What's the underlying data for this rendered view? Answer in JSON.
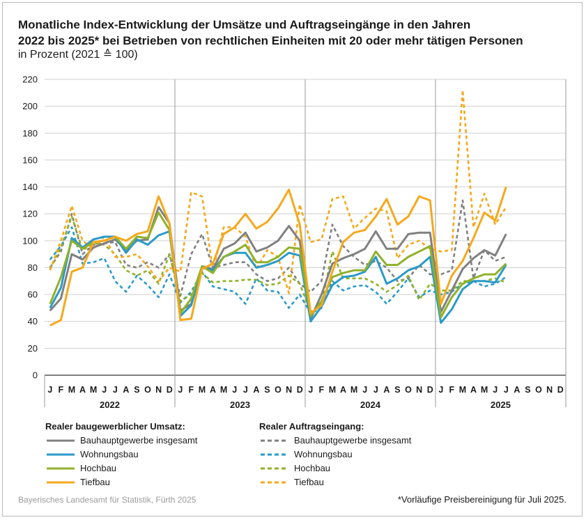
{
  "title_line1": "Monatliche Index-Entwicklung der Umsätze und Auftragseingänge in den Jahren",
  "title_line2": "2022 bis 2025* bei Betrieben von rechtlichen Einheiten mit 20 oder mehr tätigen Personen",
  "subtitle": "in Prozent (2021 ≙ 100)",
  "legend": {
    "group1_title": "Realer baugewerblicher Umsatz:",
    "group2_title": "Realer Auftragseingang:"
  },
  "source": "Bayerisches Landesamt für Statistik, Fürth 2025",
  "footnote": "*Vorläufige Preisbereinigung für Juli 2025.",
  "colors": {
    "grey": "#808080",
    "blue": "#2a9ac9",
    "green": "#8fb12a",
    "orange": "#f5a81c"
  },
  "chart_data": {
    "type": "line",
    "ylim": [
      0,
      220
    ],
    "yticks": [
      0,
      20,
      40,
      60,
      80,
      100,
      120,
      140,
      160,
      180,
      200,
      220
    ],
    "grid": true,
    "month_labels": [
      "J",
      "F",
      "M",
      "A",
      "M",
      "J",
      "J",
      "A",
      "S",
      "O",
      "N",
      "D"
    ],
    "years": [
      "2022",
      "2023",
      "2024",
      "2025"
    ],
    "series": [
      {
        "name": "Bauhauptgewerbe insgesamt",
        "group": "Realer baugewerblicher Umsatz",
        "color": "#808080",
        "dashed": false,
        "values": [
          48,
          57,
          90,
          86,
          95,
          98,
          101,
          93,
          100,
          101,
          125,
          113,
          48,
          53,
          81,
          79,
          94,
          98,
          106,
          92,
          95,
          100,
          111,
          100,
          42,
          60,
          83,
          87,
          90,
          94,
          107,
          94,
          94,
          105,
          106,
          106,
          47,
          63,
          79,
          87,
          93,
          89,
          105
        ]
      },
      {
        "name": "Wohnungsbau",
        "group": "Realer baugewerblicher Umsatz",
        "color": "#2a9ac9",
        "dashed": false,
        "values": [
          50,
          65,
          102,
          95,
          101,
          103,
          103,
          91,
          101,
          97,
          104,
          107,
          44,
          52,
          80,
          78,
          88,
          91,
          91,
          80,
          82,
          85,
          91,
          89,
          40,
          51,
          67,
          73,
          74,
          77,
          88,
          68,
          72,
          78,
          81,
          88,
          39,
          49,
          64,
          70,
          70,
          69,
          82
        ]
      },
      {
        "name": "Hochbau",
        "group": "Realer baugewerblicher Umsatz",
        "color": "#8fb12a",
        "dashed": false,
        "values": [
          53,
          73,
          100,
          94,
          99,
          100,
          103,
          94,
          103,
          102,
          121,
          108,
          46,
          57,
          81,
          76,
          88,
          92,
          97,
          84,
          84,
          88,
          95,
          94,
          44,
          55,
          73,
          76,
          78,
          78,
          92,
          82,
          82,
          88,
          92,
          96,
          43,
          58,
          68,
          72,
          75,
          75,
          83
        ]
      },
      {
        "name": "Tiefbau",
        "group": "Realer baugewerblicher Umsatz",
        "color": "#f5a81c",
        "dashed": false,
        "values": [
          37,
          41,
          77,
          80,
          99,
          100,
          103,
          100,
          105,
          107,
          133,
          113,
          41,
          42,
          79,
          83,
          105,
          110,
          120,
          109,
          114,
          124,
          138,
          112,
          46,
          52,
          77,
          99,
          106,
          108,
          118,
          131,
          112,
          118,
          133,
          130,
          53,
          74,
          85,
          102,
          121,
          115,
          140
        ]
      },
      {
        "name": "Bauhauptgewerbe insgesamt",
        "group": "Realer Auftragseingang",
        "color": "#808080",
        "dashed": true,
        "values": [
          80,
          92,
          120,
          90,
          97,
          98,
          99,
          82,
          80,
          84,
          80,
          90,
          59,
          90,
          105,
          80,
          82,
          84,
          84,
          75,
          70,
          72,
          80,
          68,
          62,
          70,
          112,
          96,
          88,
          82,
          85,
          80,
          70,
          72,
          82,
          75,
          75,
          78,
          130,
          72,
          93,
          85,
          88
        ]
      },
      {
        "name": "Wohnungsbau",
        "group": "Realer Auftragseingang",
        "color": "#2a9ac9",
        "dashed": true,
        "values": [
          86,
          96,
          110,
          83,
          84,
          87,
          70,
          62,
          74,
          67,
          58,
          75,
          54,
          62,
          77,
          66,
          64,
          62,
          53,
          72,
          63,
          62,
          50,
          60,
          46,
          50,
          70,
          63,
          66,
          67,
          62,
          53,
          62,
          72,
          58,
          63,
          60,
          62,
          68,
          70,
          66,
          68,
          73
        ]
      },
      {
        "name": "Hochbau",
        "group": "Realer Auftragseingang",
        "color": "#8fb12a",
        "dashed": true,
        "values": [
          79,
          95,
          118,
          93,
          98,
          97,
          90,
          78,
          74,
          78,
          68,
          90,
          55,
          60,
          76,
          69,
          70,
          70,
          71,
          71,
          67,
          68,
          74,
          68,
          47,
          53,
          92,
          72,
          72,
          72,
          68,
          62,
          67,
          74,
          56,
          68,
          63,
          63,
          70,
          70,
          70,
          72,
          69
        ]
      },
      {
        "name": "Tiefbau",
        "group": "Realer Auftragseingang",
        "color": "#f5a81c",
        "dashed": true,
        "values": [
          78,
          100,
          126,
          100,
          94,
          103,
          88,
          88,
          90,
          81,
          70,
          80,
          77,
          136,
          133,
          78,
          110,
          110,
          103,
          79,
          93,
          88,
          61,
          127,
          99,
          101,
          131,
          133,
          109,
          117,
          124,
          122,
          87,
          97,
          100,
          94,
          92,
          93,
          212,
          110,
          135,
          112,
          125
        ]
      }
    ]
  }
}
